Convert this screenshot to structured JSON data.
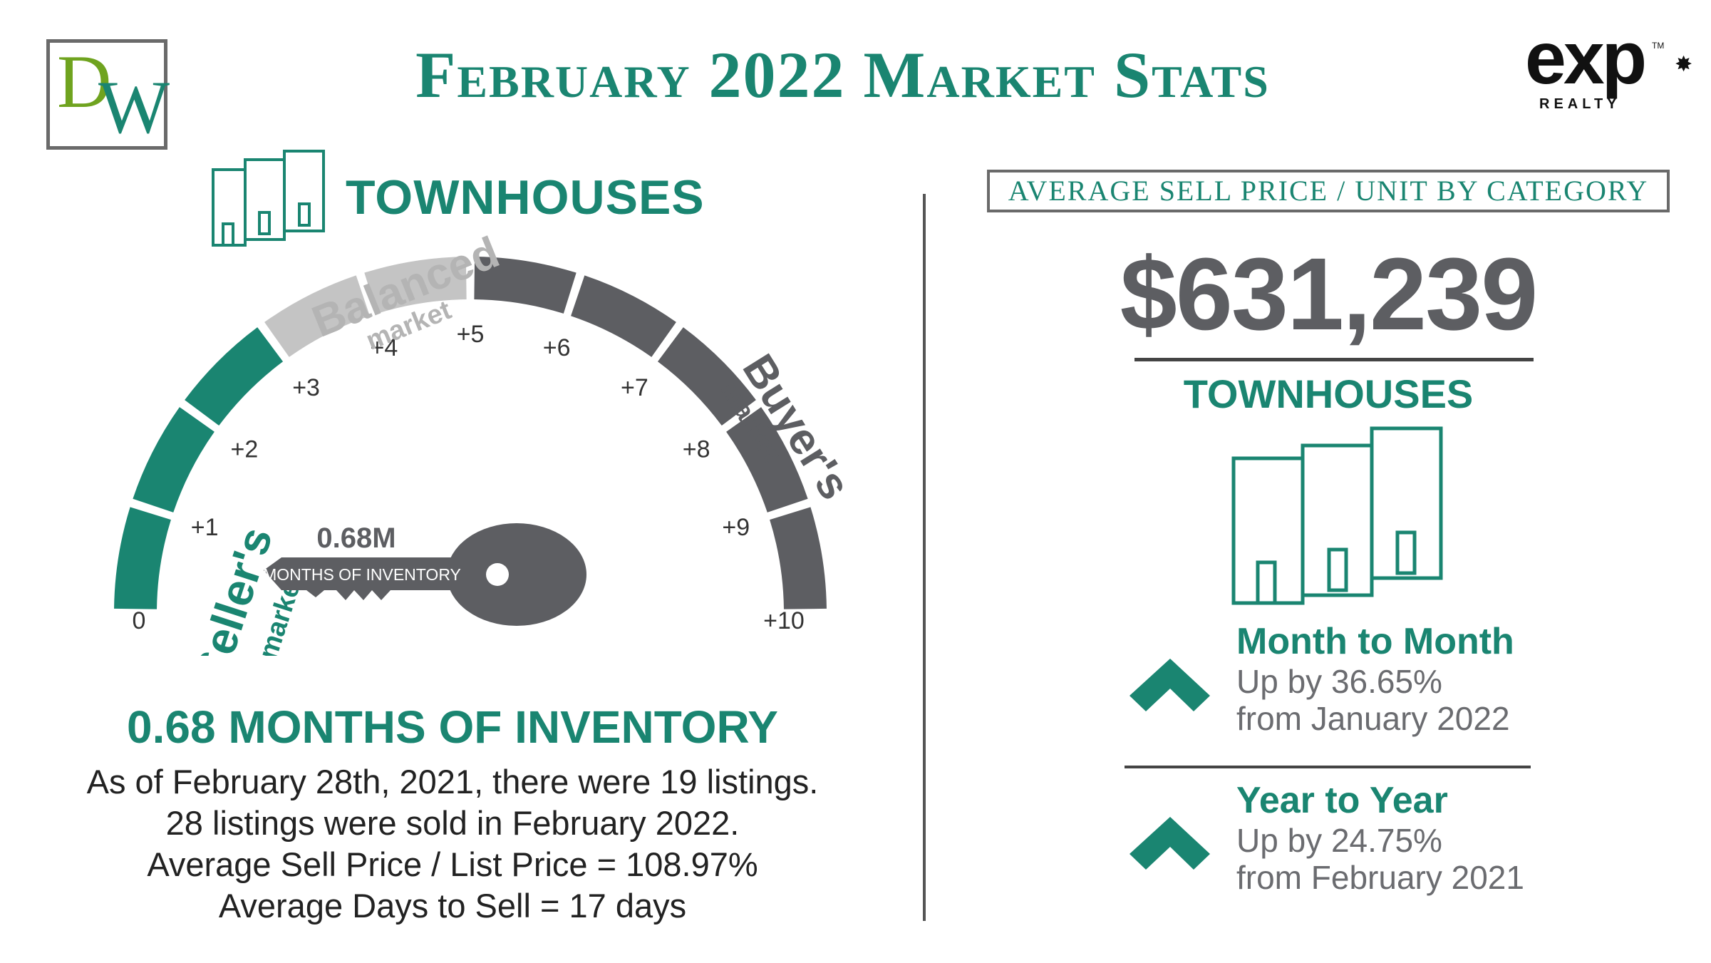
{
  "header": {
    "title": "February 2022 Market Stats",
    "left_logo": {
      "letters": [
        "D",
        "W"
      ]
    },
    "right_logo": {
      "brand": "exp",
      "sub": "REALTY",
      "tm": "TM"
    }
  },
  "colors": {
    "accent": "#1a8571",
    "dark_gray": "#5d5e62",
    "light_gray": "#c4c4c4",
    "logo_green": "#6fa31f"
  },
  "left_panel": {
    "category_label": "TOWNHOUSES",
    "category_icon": "townhouse-icon",
    "gauge": {
      "scale_labels": [
        "0",
        "+1",
        "+2",
        "+3",
        "+4",
        "+5",
        "+6",
        "+7",
        "+8",
        "+9",
        "+10"
      ],
      "zone_sellers": {
        "title": "Seller's",
        "sub": "market"
      },
      "zone_balanced": {
        "title": "Balanced",
        "sub": "market"
      },
      "zone_buyers": {
        "title": "Buyer's",
        "sub": "market"
      },
      "key_value": "0.68M",
      "key_caption": "MONTHS OF INVENTORY",
      "indicator_value": 0.68
    },
    "inventory_heading": "0.68 MONTHS OF INVENTORY",
    "inventory_lines": [
      "As of February 28th, 2021, there were 19 listings.",
      "28 listings were sold in February 2022.",
      "Average Sell Price / List Price = 108.97%",
      "Average Days to Sell = 17 days"
    ]
  },
  "right_panel": {
    "box_label": "Average Sell Price / Unit by Category",
    "price": "$631,239",
    "category_label": "TOWNHOUSES",
    "month_to_month": {
      "title": "Month to Month",
      "line1": "Up by 36.65%",
      "line2": "from January 2022"
    },
    "year_to_year": {
      "title": "Year to Year",
      "line1": "Up by 24.75%",
      "line2": "from February 2021"
    }
  }
}
